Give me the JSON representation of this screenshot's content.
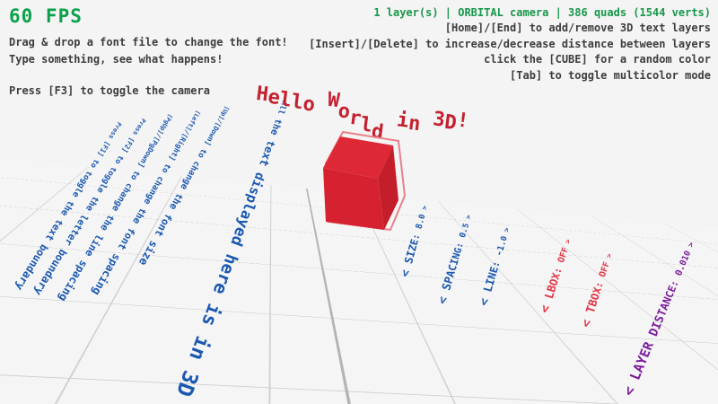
{
  "hud": {
    "fps": "60 FPS",
    "left_instructions": [
      "Drag & drop a font file to change the font!",
      "Type something, see what happens!",
      "Press [F3] to toggle the camera"
    ],
    "status": "1 layer(s) | ORBITAL camera |  386 quads (1544 verts)",
    "right_instructions": [
      "[Home]/[End] to add/remove 3D text layers",
      "[Insert]/[Delete] to increase/decrease distance between layers",
      "click the [CUBE] for a random color",
      "[Tab] to toggle multicolor mode"
    ]
  },
  "scene": {
    "hello": {
      "text": "Hello World in 3D!",
      "offsets": [
        0,
        2,
        3,
        4,
        5,
        0,
        -3,
        8,
        14,
        20,
        26,
        0,
        10,
        12,
        0,
        4,
        6,
        2
      ]
    },
    "ground_instructions": [
      "Press [F1] to toggle the text boundary",
      "Press [F2] to toggle the letter boundary",
      "[PgUp]/[PgDown] to change the line spacing",
      "[Left]/[Right] to change the font spacing",
      "[Up]/[Down] to change the font size"
    ],
    "banner": "All the text displayed here is in 3D",
    "params": [
      {
        "label": "< SIZE: 8.0 >",
        "color": "#1b58b0"
      },
      {
        "label": "< SPACING: 0.5 >",
        "color": "#1b58b0"
      },
      {
        "label": "< LINE: -1.0 >",
        "color": "#1b58b0"
      },
      {
        "label": "< LBOX: OFF >",
        "color": "#e23344"
      },
      {
        "label": "< TBOX: OFF >",
        "color": "#e23344"
      },
      {
        "label": "< LAYER DISTANCE: 0.010 >",
        "color": "#7c1d9c"
      }
    ],
    "cube_color": "#d6222f"
  },
  "colors": {
    "background": "#f4f4f4",
    "grid_line": "#cdcdcd",
    "grid_axis": "#b3b3b3",
    "fps_green": "#0ba14b",
    "status_green": "#17984a",
    "hint_gray": "#3d3d3d",
    "text_blue": "#1b58b0",
    "text_red": "#c4202f",
    "cube_outline": "#e8818a"
  }
}
